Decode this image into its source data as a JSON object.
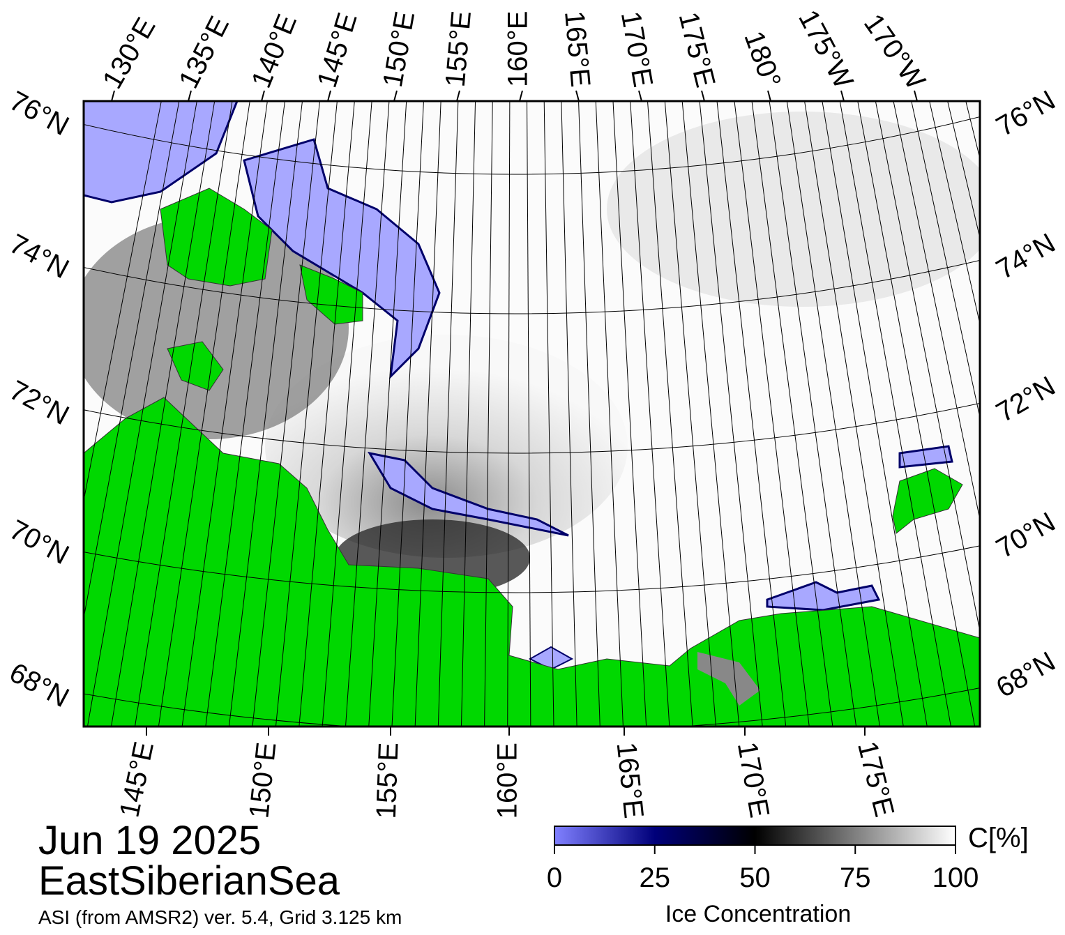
{
  "map": {
    "top_lon_labels": [
      "130°E",
      "135°E",
      "140°E",
      "145°E",
      "150°E",
      "155°E",
      "160°E",
      "165°E",
      "170°E",
      "175°E",
      "180°",
      "175°W",
      "170°W"
    ],
    "bottom_lon_labels": [
      "145°E",
      "150°E",
      "155°E",
      "160°E",
      "165°E",
      "170°E",
      "175°E"
    ],
    "left_lat_labels": [
      "76°N",
      "74°N",
      "72°N",
      "70°N",
      "68°N"
    ],
    "right_lat_labels": [
      "76°N",
      "74°N",
      "72°N",
      "70°N",
      "68°N"
    ]
  },
  "date": "Jun 19 2025",
  "region": "EastSiberianSea",
  "source": "ASI (from AMSR2) ver. 5.4,  Grid 3.125 km",
  "colorbar": {
    "label": "Ice Concentration",
    "unit": "C[%]",
    "lim": [
      0,
      100
    ],
    "ticks": [
      0,
      25,
      50,
      75,
      100
    ]
  }
}
